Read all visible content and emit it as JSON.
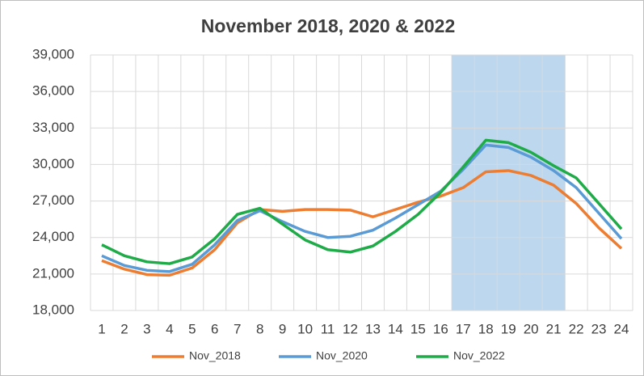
{
  "chart_data": {
    "type": "line",
    "title": "November 2018, 2020 & 2022",
    "categories": [
      "1",
      "2",
      "3",
      "4",
      "5",
      "6",
      "7",
      "8",
      "9",
      "10",
      "11",
      "12",
      "13",
      "14",
      "15",
      "16",
      "17",
      "18",
      "19",
      "20",
      "21",
      "22",
      "23",
      "24"
    ],
    "series": [
      {
        "name": "Nov_2018",
        "color": "#ed7d31",
        "values": [
          22100,
          21400,
          20950,
          20900,
          21500,
          23000,
          25200,
          26300,
          26150,
          26300,
          26300,
          26250,
          25700,
          26300,
          26900,
          27400,
          28100,
          29400,
          29500,
          29100,
          28300,
          26800,
          24800,
          23100
        ]
      },
      {
        "name": "Nov_2020",
        "color": "#5b9bd5",
        "values": [
          22500,
          21700,
          21300,
          21200,
          21800,
          23400,
          25400,
          26200,
          25300,
          24500,
          24000,
          24100,
          24600,
          25600,
          26700,
          27800,
          29600,
          31600,
          31400,
          30600,
          29500,
          28100,
          26000,
          23900
        ]
      },
      {
        "name": "Nov_2022",
        "color": "#1eab48",
        "values": [
          23400,
          22500,
          22000,
          21850,
          22400,
          23900,
          25900,
          26400,
          25100,
          23800,
          23000,
          22800,
          23300,
          24500,
          25900,
          27700,
          29800,
          32000,
          31800,
          31000,
          29900,
          28900,
          26800,
          24700
        ]
      }
    ],
    "ylim": [
      18000,
      39000
    ],
    "yticks": [
      {
        "value": 18000,
        "label": "18,000"
      },
      {
        "value": 21000,
        "label": "21,000"
      },
      {
        "value": 24000,
        "label": "24,000"
      },
      {
        "value": 27000,
        "label": "27,000"
      },
      {
        "value": 30000,
        "label": "30,000"
      },
      {
        "value": 33000,
        "label": "33,000"
      },
      {
        "value": 36000,
        "label": "36,000"
      },
      {
        "value": 39000,
        "label": "39,000"
      }
    ],
    "grid": true,
    "legend": "bottom",
    "highlight": {
      "from": "17",
      "to": "21",
      "color": "#bdd7ee"
    }
  }
}
